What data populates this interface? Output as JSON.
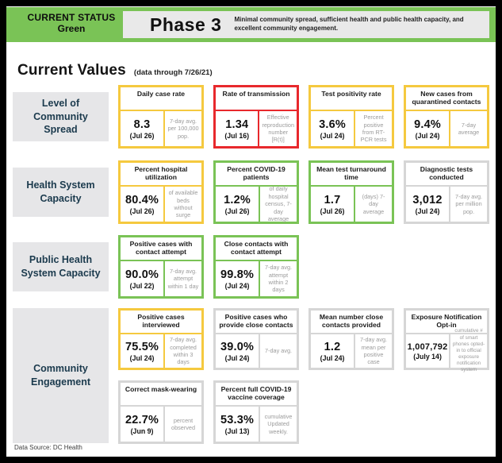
{
  "header": {
    "status_label": "CURRENT STATUS",
    "status_value": "Green",
    "phase": "Phase 3",
    "phase_description": "Minimal community spread, sufficient health and public health capacity, and excellent community engagement."
  },
  "section": {
    "title": "Current Values",
    "subtitle": "(data through 7/26/21)"
  },
  "colors": {
    "green": "#7AC356",
    "yellow": "#F5C93F",
    "red": "#E8282C",
    "gray": "#D6D6D6",
    "navy": "#1B3A4D"
  },
  "rows": [
    {
      "label": "Level of Community Spread",
      "cards": [
        {
          "title": "Daily case rate",
          "value": "8.3",
          "date": "(Jul 26)",
          "note": "7-day avg. per 100,000 pop.",
          "status": "yellow"
        },
        {
          "title": "Rate of transmission",
          "value": "1.34",
          "date": "(Jul 16)",
          "note": "Effective reproduction number [R(t)]",
          "status": "red"
        },
        {
          "title": "Test positivity rate",
          "value": "3.6%",
          "date": "(Jul 24)",
          "note": "Percent positive from RT-PCR tests",
          "status": "yellow"
        },
        {
          "title": "New cases from quarantined contacts",
          "value": "9.4%",
          "date": "(Jul 24)",
          "note": "7-day average",
          "status": "yellow"
        }
      ]
    },
    {
      "label": "Health System Capacity",
      "cards": [
        {
          "title": "Percent hospital utilization",
          "value": "80.4%",
          "date": "(Jul 26)",
          "note": "of available beds without surge",
          "status": "yellow"
        },
        {
          "title": "Percent COVID-19 patients",
          "value": "1.2%",
          "date": "(Jul 26)",
          "note": "of daily hospital census, 7-day average",
          "status": "green"
        },
        {
          "title": "Mean test turnaround time",
          "value": "1.7",
          "date": "(Jul 26)",
          "note": "(days) 7-day average",
          "status": "green"
        },
        {
          "title": "Diagnostic tests conducted",
          "value": "3,012",
          "date": "(Jul 24)",
          "note": "7-day avg. per million pop.",
          "status": "gray"
        }
      ]
    },
    {
      "label": "Public Health System Capacity",
      "cards": [
        {
          "title": "Positive cases with contact attempt",
          "value": "90.0%",
          "date": "(Jul 22)",
          "note": "7-day avg. attempt within 1 day",
          "status": "green"
        },
        {
          "title": "Close contacts with contact attempt",
          "value": "99.8%",
          "date": "(Jul 24)",
          "note": "7-day avg. attempt within 2 days",
          "status": "green"
        }
      ]
    },
    {
      "label": "Community Engagement",
      "cards": [
        {
          "title": "Positive cases interviewed",
          "value": "75.5%",
          "date": "(Jul 24)",
          "note": "7-day avg. completed within 3 days",
          "status": "yellow"
        },
        {
          "title": "Positive cases who provide close contacts",
          "value": "39.0%",
          "date": "(Jul 24)",
          "note": "7-day avg.",
          "status": "gray"
        },
        {
          "title": "Mean number close contacts provided",
          "value": "1.2",
          "date": "(Jul 24)",
          "note": "7-day avg. mean per positive case",
          "status": "gray"
        },
        {
          "title": "Exposure Notification Opt-in",
          "value": "1,007,792",
          "date": "(July 14)",
          "note": "cumulative # of smart phones opted-in to official exposure notification system",
          "status": "gray"
        }
      ],
      "cards2": [
        {
          "title": "Correct mask-wearing",
          "value": "22.7%",
          "date": "(Jun 9)",
          "note": "percent observed",
          "status": "gray"
        },
        {
          "title": "Percent full COVID-19 vaccine coverage",
          "value": "53.3%",
          "date": "(Jul 13)",
          "note": "cumulative Updated weekly.",
          "status": "gray"
        }
      ]
    }
  ],
  "footer": {
    "source": "Data Source: DC Health"
  }
}
